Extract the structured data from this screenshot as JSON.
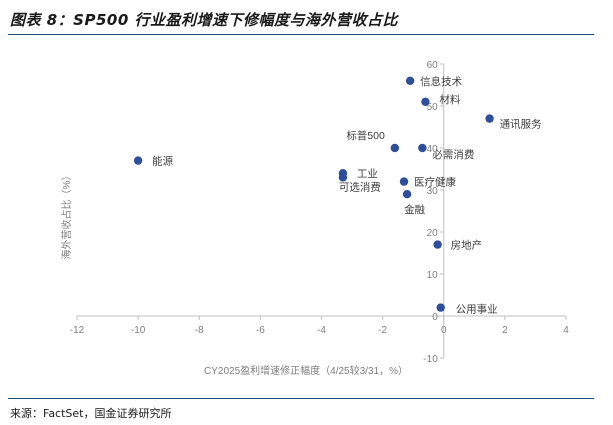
{
  "figure": {
    "title": "图表 8：SP500 行业盈利增速下修幅度与海外营收占比",
    "source": "来源：FactSet，国金证券研究所"
  },
  "colors": {
    "point": "#2e4d9a",
    "axis": "#bfbfbf",
    "tick_label": "#7f7f7f",
    "point_label": "#404040",
    "rule": "#1f4e79"
  },
  "chart_data": {
    "type": "scatter",
    "title": "",
    "xlabel": "CY2025盈利增速修正幅度（4/25较3/31，%）",
    "ylabel": "海外营收占比（%）",
    "xlim": [
      -12,
      4
    ],
    "ylim": [
      -10,
      60
    ],
    "x_ticks": [
      "-12",
      "-10",
      "-8",
      "-6",
      "-4",
      "-2",
      "0",
      "2",
      "4"
    ],
    "y_ticks": [
      "-10",
      "0",
      "10",
      "20",
      "30",
      "40",
      "50",
      "60"
    ],
    "grid": false,
    "points": [
      {
        "label": "信息技术",
        "x": -1.1,
        "y": 56
      },
      {
        "label": "材料",
        "x": -0.6,
        "y": 51
      },
      {
        "label": "通讯服务",
        "x": 1.5,
        "y": 47
      },
      {
        "label": "标普500",
        "x": -1.6,
        "y": 40
      },
      {
        "label": "必需消费",
        "x": -0.7,
        "y": 40
      },
      {
        "label": "能源",
        "x": -10.0,
        "y": 37
      },
      {
        "label": "工业",
        "x": -3.3,
        "y": 34
      },
      {
        "label": "可选消费",
        "x": -3.3,
        "y": 33
      },
      {
        "label": "医疗健康",
        "x": -1.3,
        "y": 32
      },
      {
        "label": "金融",
        "x": -1.2,
        "y": 29
      },
      {
        "label": "房地产",
        "x": -0.2,
        "y": 17
      },
      {
        "label": "公用事业",
        "x": -0.1,
        "y": 2
      }
    ]
  }
}
